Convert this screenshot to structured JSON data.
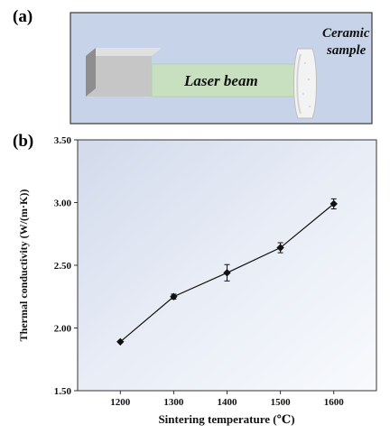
{
  "panel_a": {
    "label": "(a)",
    "beam_text": "Laser beam",
    "sample_line1": "Ceramic",
    "sample_line2": "sample"
  },
  "panel_b": {
    "label": "(b)"
  },
  "chart_data": {
    "type": "line",
    "xlabel": "Sintering temperature (℃)",
    "ylabel": "Thermal conductivity (W/(m·K))",
    "x": [
      1200,
      1300,
      1400,
      1500,
      1600
    ],
    "y": [
      1.89,
      2.25,
      2.44,
      2.64,
      2.99
    ],
    "error": [
      0.0,
      0.02,
      0.065,
      0.04,
      0.04
    ],
    "xticks": [
      "1200",
      "1300",
      "1400",
      "1500",
      "1600"
    ],
    "yticks": [
      "1.50",
      "2.00",
      "2.50",
      "3.00",
      "3.50"
    ],
    "xlim": [
      1120,
      1680
    ],
    "ylim": [
      1.5,
      3.5
    ],
    "marker": "diamond",
    "grid": false
  }
}
